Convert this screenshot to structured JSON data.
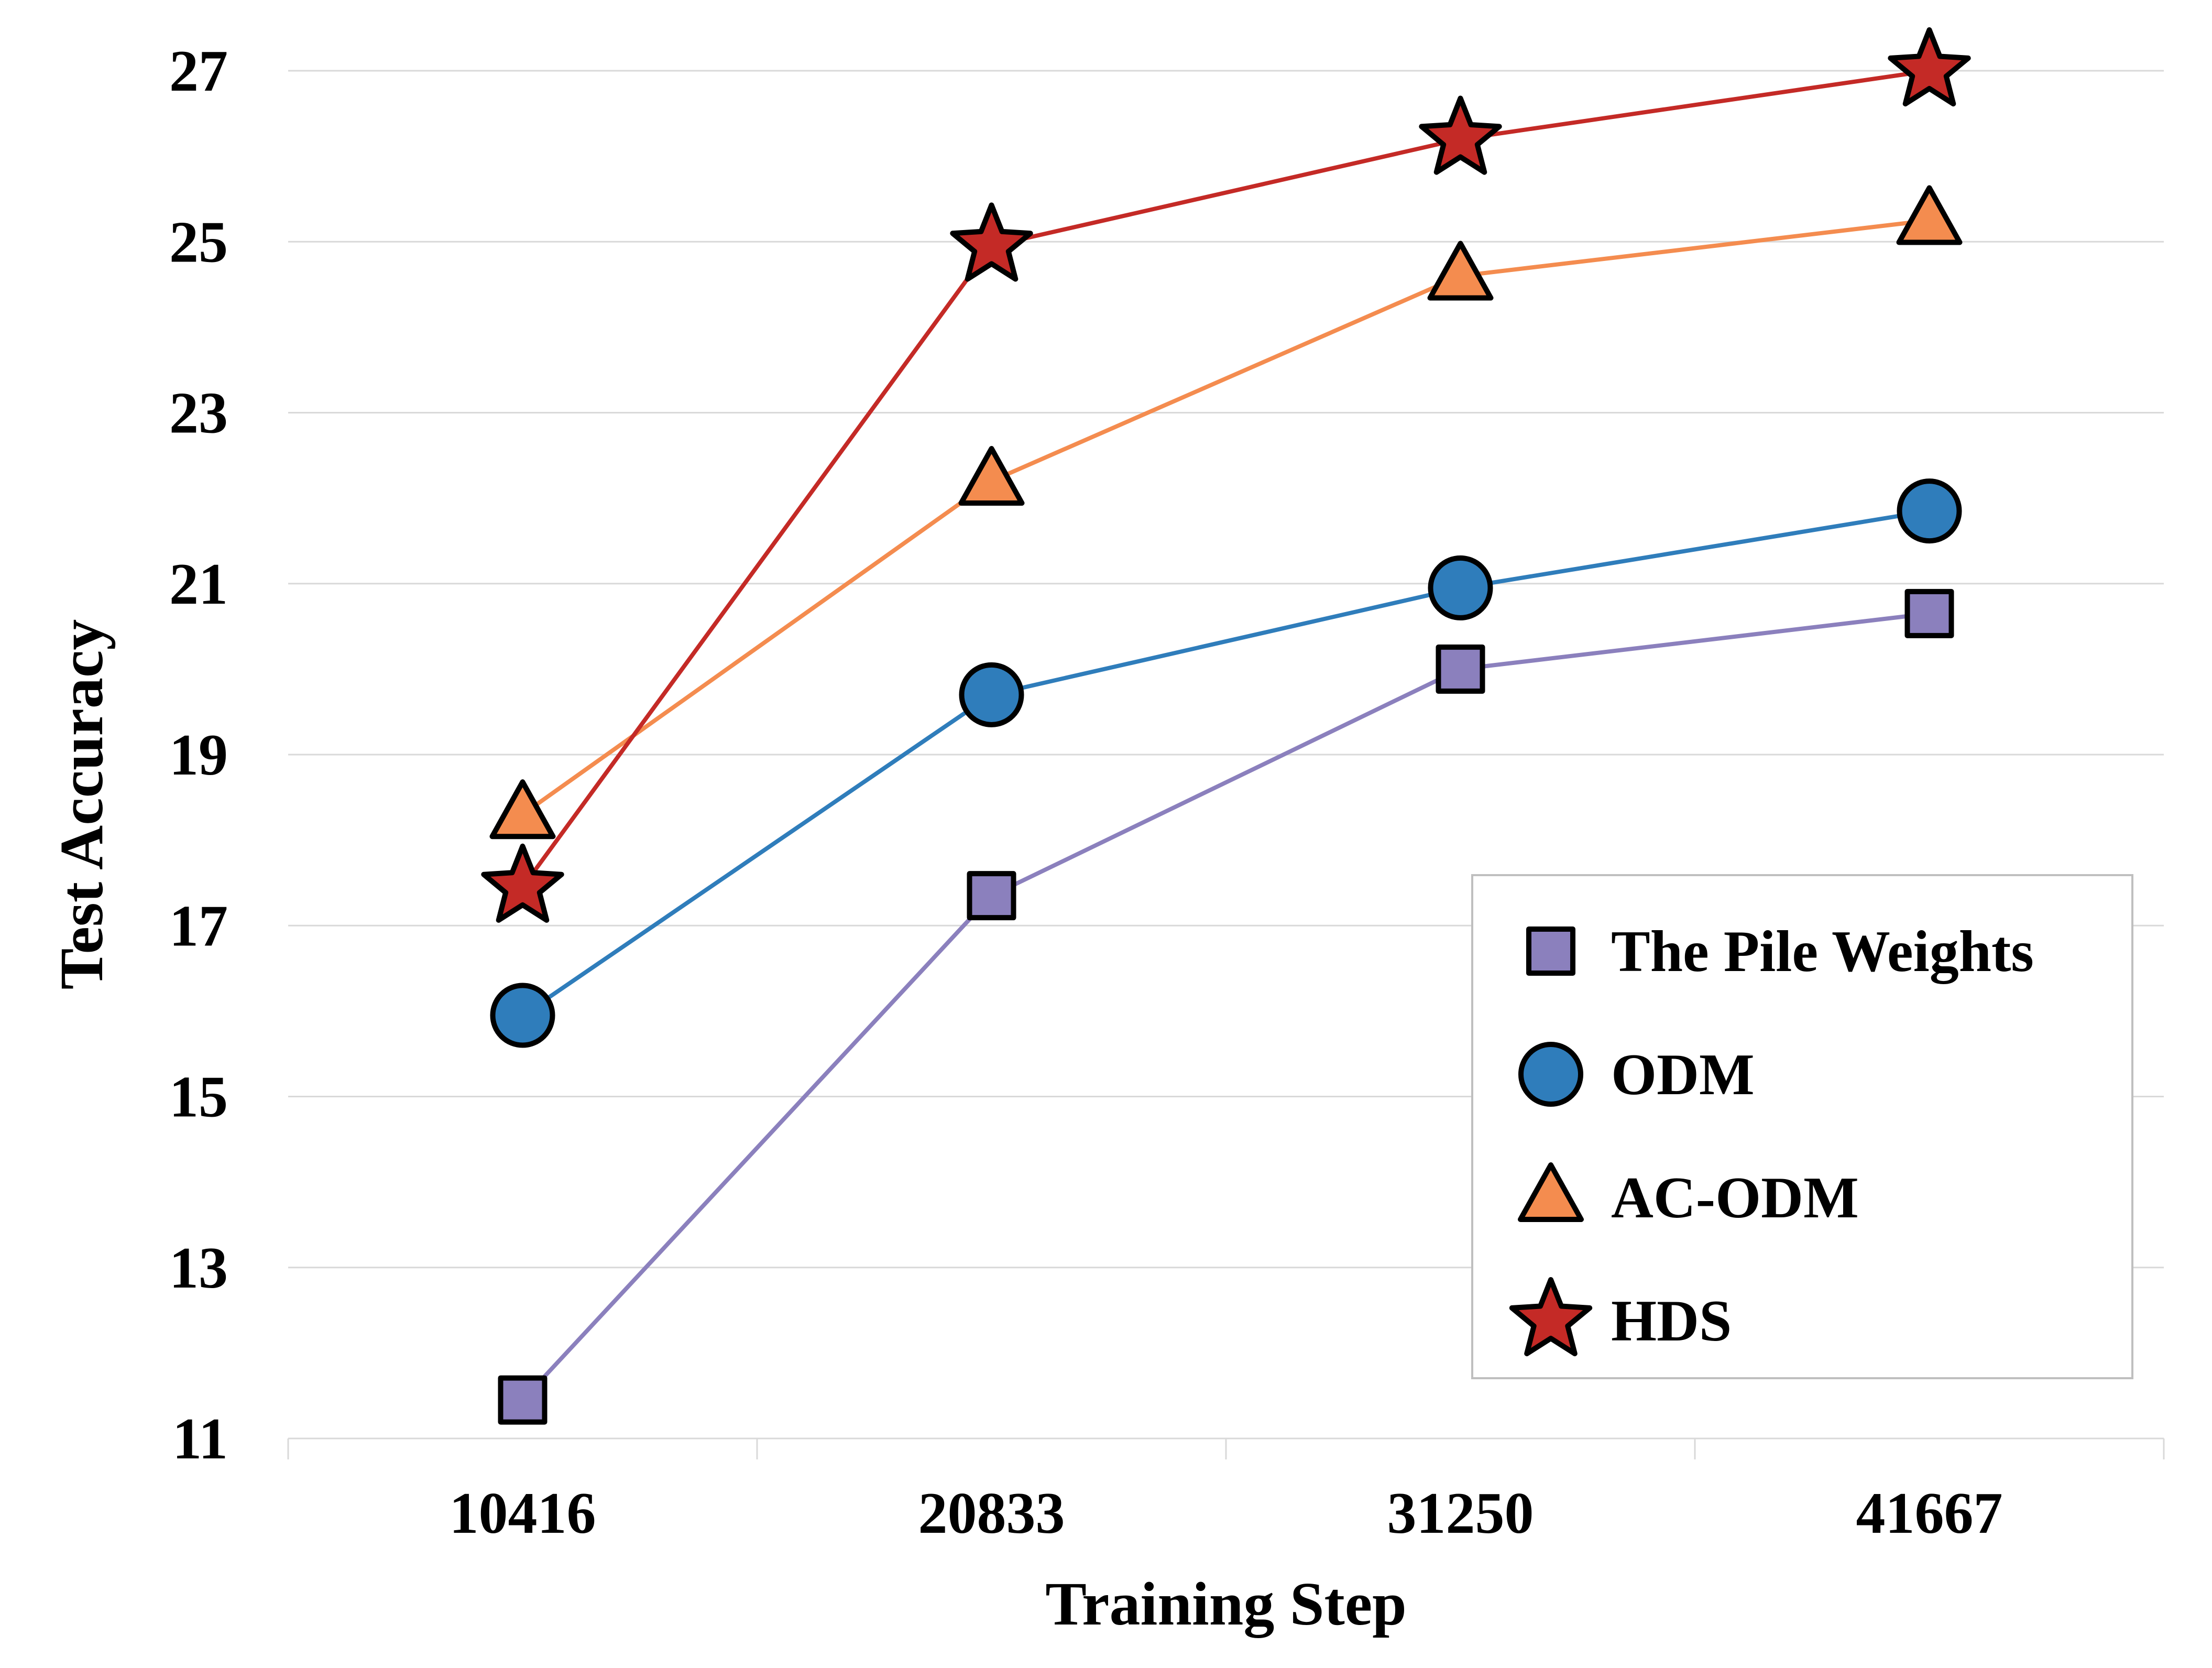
{
  "chart_data": {
    "type": "line",
    "xlabel": "Training Step",
    "ylabel": "Test Accuracy",
    "categories": [
      "10416",
      "20833",
      "31250",
      "41667"
    ],
    "ylim": [
      11,
      27
    ],
    "yticks": [
      11,
      13,
      15,
      17,
      19,
      21,
      23,
      25,
      27
    ],
    "grid": true,
    "legend_position": "bottom-right",
    "series": [
      {
        "name": "The Pile Weights",
        "color": "#8b80bd",
        "marker": "square",
        "values": [
          11.45,
          17.35,
          20.0,
          20.65
        ]
      },
      {
        "name": "ODM",
        "color": "#2f7dbb",
        "marker": "circle",
        "values": [
          15.95,
          19.7,
          20.95,
          21.85
        ]
      },
      {
        "name": "AC-ODM",
        "color": "#f48c4f",
        "marker": "triangle",
        "values": [
          18.3,
          22.2,
          24.6,
          25.25
        ]
      },
      {
        "name": "HDS",
        "color": "#c42a26",
        "marker": "star",
        "values": [
          17.45,
          24.95,
          26.2,
          27.0
        ]
      }
    ]
  }
}
